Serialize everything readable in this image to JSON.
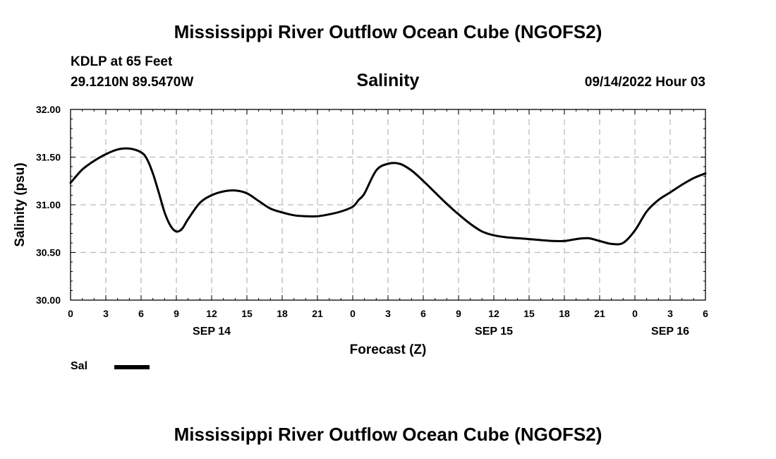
{
  "header": {
    "title": "Mississippi River Outflow Ocean Cube (NGOFS2)",
    "station": "KDLP at 65 Feet",
    "coords": "29.1210N  89.5470W",
    "variable": "Salinity",
    "datetime": "09/14/2022 Hour 03"
  },
  "footer": {
    "title": "Mississippi River Outflow Ocean Cube (NGOFS2)"
  },
  "legend": {
    "label": "Sal"
  },
  "chart_data": {
    "type": "line",
    "title": "Salinity",
    "xlabel": "Forecast (Z)",
    "ylabel": "Salinity (psu)",
    "xlim": [
      0,
      54
    ],
    "ylim": [
      30.0,
      32.0
    ],
    "x_ticks": [
      0,
      3,
      6,
      9,
      12,
      15,
      18,
      21,
      24,
      27,
      30,
      33,
      36,
      39,
      42,
      45,
      48,
      51,
      54
    ],
    "x_tick_labels": [
      "0",
      "3",
      "6",
      "9",
      "12",
      "15",
      "18",
      "21",
      "0",
      "3",
      "6",
      "9",
      "12",
      "15",
      "18",
      "21",
      "0",
      "3",
      "6"
    ],
    "y_ticks": [
      30.0,
      30.5,
      31.0,
      31.5,
      32.0
    ],
    "y_tick_labels": [
      "30.00",
      "30.50",
      "31.00",
      "31.50",
      "32.00"
    ],
    "date_labels": [
      {
        "x": 12,
        "label": "SEP 14"
      },
      {
        "x": 36,
        "label": "SEP 15"
      },
      {
        "x": 51,
        "label": "SEP 16"
      }
    ],
    "grid": true,
    "series": [
      {
        "name": "Sal",
        "color": "#000000",
        "x": [
          0,
          1,
          2,
          3,
          4,
          5,
          6,
          6.5,
          7,
          7.5,
          8,
          8.5,
          9,
          9.5,
          10,
          11,
          12,
          13,
          14,
          15,
          16,
          17,
          18,
          19,
          20,
          21,
          22,
          23,
          24,
          24.5,
          25,
          26,
          27,
          28,
          29,
          30,
          31,
          32,
          33,
          34,
          35,
          36,
          37,
          38,
          39,
          40,
          41,
          42,
          43,
          44,
          45,
          46,
          47,
          48,
          49,
          50,
          51,
          52,
          53,
          54
        ],
        "values": [
          31.23,
          31.37,
          31.46,
          31.53,
          31.58,
          31.59,
          31.55,
          31.48,
          31.33,
          31.13,
          30.92,
          30.78,
          30.72,
          30.75,
          30.85,
          31.02,
          31.1,
          31.14,
          31.15,
          31.12,
          31.04,
          30.96,
          30.92,
          30.89,
          30.88,
          30.88,
          30.9,
          30.93,
          30.98,
          31.05,
          31.12,
          31.36,
          31.43,
          31.43,
          31.36,
          31.25,
          31.13,
          31.01,
          30.9,
          30.8,
          30.72,
          30.68,
          30.66,
          30.65,
          30.64,
          30.63,
          30.62,
          30.62,
          30.64,
          30.65,
          30.62,
          30.59,
          30.6,
          30.73,
          30.93,
          31.05,
          31.13,
          31.21,
          31.28,
          31.33
        ]
      }
    ]
  }
}
